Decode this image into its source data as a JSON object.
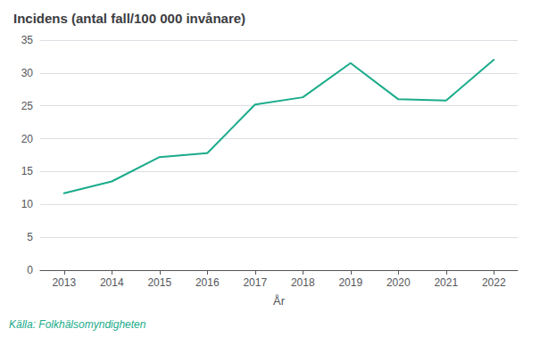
{
  "chart_data": {
    "type": "line",
    "title": "Incidens (antal fall/100 000 invånare)",
    "xlabel": "År",
    "x": [
      2013,
      2014,
      2015,
      2016,
      2017,
      2018,
      2019,
      2020,
      2021,
      2022
    ],
    "values": [
      11.7,
      13.5,
      17.2,
      17.8,
      25.2,
      26.3,
      31.5,
      26.0,
      25.8,
      32.0
    ],
    "color": "#1aab8a",
    "xlim": [
      2012.5,
      2022.5
    ],
    "xticks": [
      2013,
      2014,
      2015,
      2016,
      2017,
      2018,
      2019,
      2020,
      2021,
      2022
    ],
    "ylim": [
      0,
      35
    ],
    "yticks": [
      0,
      5,
      10,
      15,
      20,
      25,
      30,
      35
    ],
    "grid": true,
    "annotations": [
      {
        "text": "Källa: Folkhälsomyndigheten",
        "color": "#1aab8a"
      }
    ]
  }
}
